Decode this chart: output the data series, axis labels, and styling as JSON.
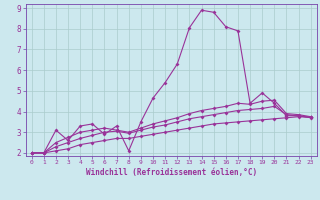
{
  "xlabel": "Windchill (Refroidissement éolien,°C)",
  "bg_color": "#cce8ee",
  "grid_color": "#aacccc",
  "line_color": "#993399",
  "spine_color": "#7744aa",
  "xlim": [
    -0.5,
    23.5
  ],
  "ylim": [
    1.85,
    9.2
  ],
  "xticks": [
    0,
    1,
    2,
    3,
    4,
    5,
    6,
    7,
    8,
    9,
    10,
    11,
    12,
    13,
    14,
    15,
    16,
    17,
    18,
    19,
    20,
    21,
    22,
    23
  ],
  "yticks": [
    2,
    3,
    4,
    5,
    6,
    7,
    8,
    9
  ],
  "series1_x": [
    0,
    1,
    2,
    3,
    4,
    5,
    6,
    7,
    8,
    9,
    10,
    11,
    12,
    13,
    14,
    15,
    16,
    17,
    18,
    19,
    20,
    21,
    22,
    23
  ],
  "series1_y": [
    2.0,
    2.0,
    3.1,
    2.6,
    3.3,
    3.4,
    2.9,
    3.3,
    2.1,
    3.5,
    4.65,
    5.4,
    6.3,
    8.05,
    8.9,
    8.8,
    8.1,
    7.9,
    4.4,
    4.9,
    4.4,
    3.8,
    3.8,
    3.7
  ],
  "series2_x": [
    0,
    1,
    2,
    3,
    4,
    5,
    6,
    7,
    8,
    9,
    10,
    11,
    12,
    13,
    14,
    15,
    16,
    17,
    18,
    19,
    20,
    21,
    22,
    23
  ],
  "series2_y": [
    2.0,
    2.0,
    2.5,
    2.75,
    3.0,
    3.1,
    3.2,
    3.1,
    3.0,
    3.2,
    3.4,
    3.55,
    3.7,
    3.9,
    4.05,
    4.15,
    4.25,
    4.4,
    4.35,
    4.5,
    4.55,
    3.9,
    3.85,
    3.75
  ],
  "series3_x": [
    0,
    1,
    2,
    3,
    4,
    5,
    6,
    7,
    8,
    9,
    10,
    11,
    12,
    13,
    14,
    15,
    16,
    17,
    18,
    19,
    20,
    21,
    22,
    23
  ],
  "series3_y": [
    2.0,
    2.0,
    2.3,
    2.5,
    2.7,
    2.85,
    3.0,
    3.05,
    2.95,
    3.1,
    3.25,
    3.35,
    3.5,
    3.65,
    3.75,
    3.85,
    3.95,
    4.05,
    4.1,
    4.15,
    4.25,
    3.85,
    3.78,
    3.72
  ],
  "series4_x": [
    0,
    1,
    2,
    3,
    4,
    5,
    6,
    7,
    8,
    9,
    10,
    11,
    12,
    13,
    14,
    15,
    16,
    17,
    18,
    19,
    20,
    21,
    22,
    23
  ],
  "series4_y": [
    2.0,
    2.0,
    2.1,
    2.2,
    2.4,
    2.5,
    2.6,
    2.7,
    2.7,
    2.8,
    2.9,
    3.0,
    3.1,
    3.2,
    3.3,
    3.4,
    3.45,
    3.5,
    3.55,
    3.6,
    3.65,
    3.7,
    3.75,
    3.72
  ]
}
